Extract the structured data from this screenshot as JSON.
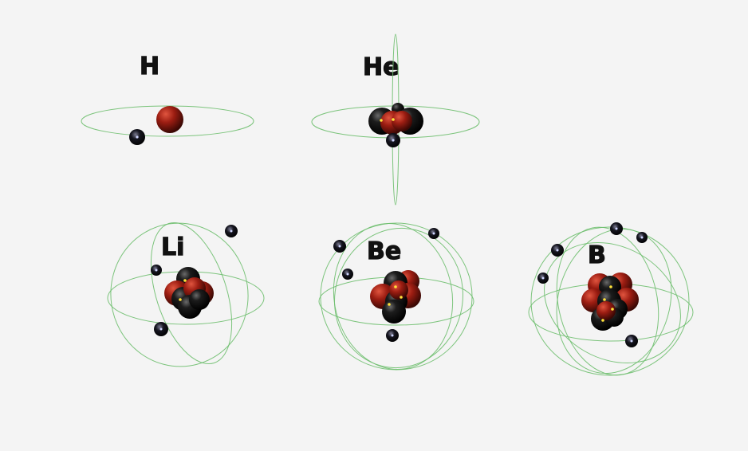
{
  "atoms": [
    {
      "symbol": "H",
      "protons": 1,
      "neutrons": 0,
      "electrons": 1
    },
    {
      "symbol": "He",
      "protons": 2,
      "neutrons": 2,
      "electrons": 2
    },
    {
      "symbol": "Li",
      "protons": 3,
      "neutrons": 4,
      "electrons": 3
    },
    {
      "symbol": "Be",
      "protons": 4,
      "neutrons": 5,
      "electrons": 4
    },
    {
      "symbol": "B",
      "protons": 5,
      "neutrons": 6,
      "electrons": 5
    }
  ],
  "colors": {
    "background": "#f4f4f4",
    "proton": "#8b1a10",
    "neutron": "#111111",
    "electron": "#0d0d1a",
    "orbit": "#6fbf6f",
    "highlight": "#ffe23a"
  }
}
